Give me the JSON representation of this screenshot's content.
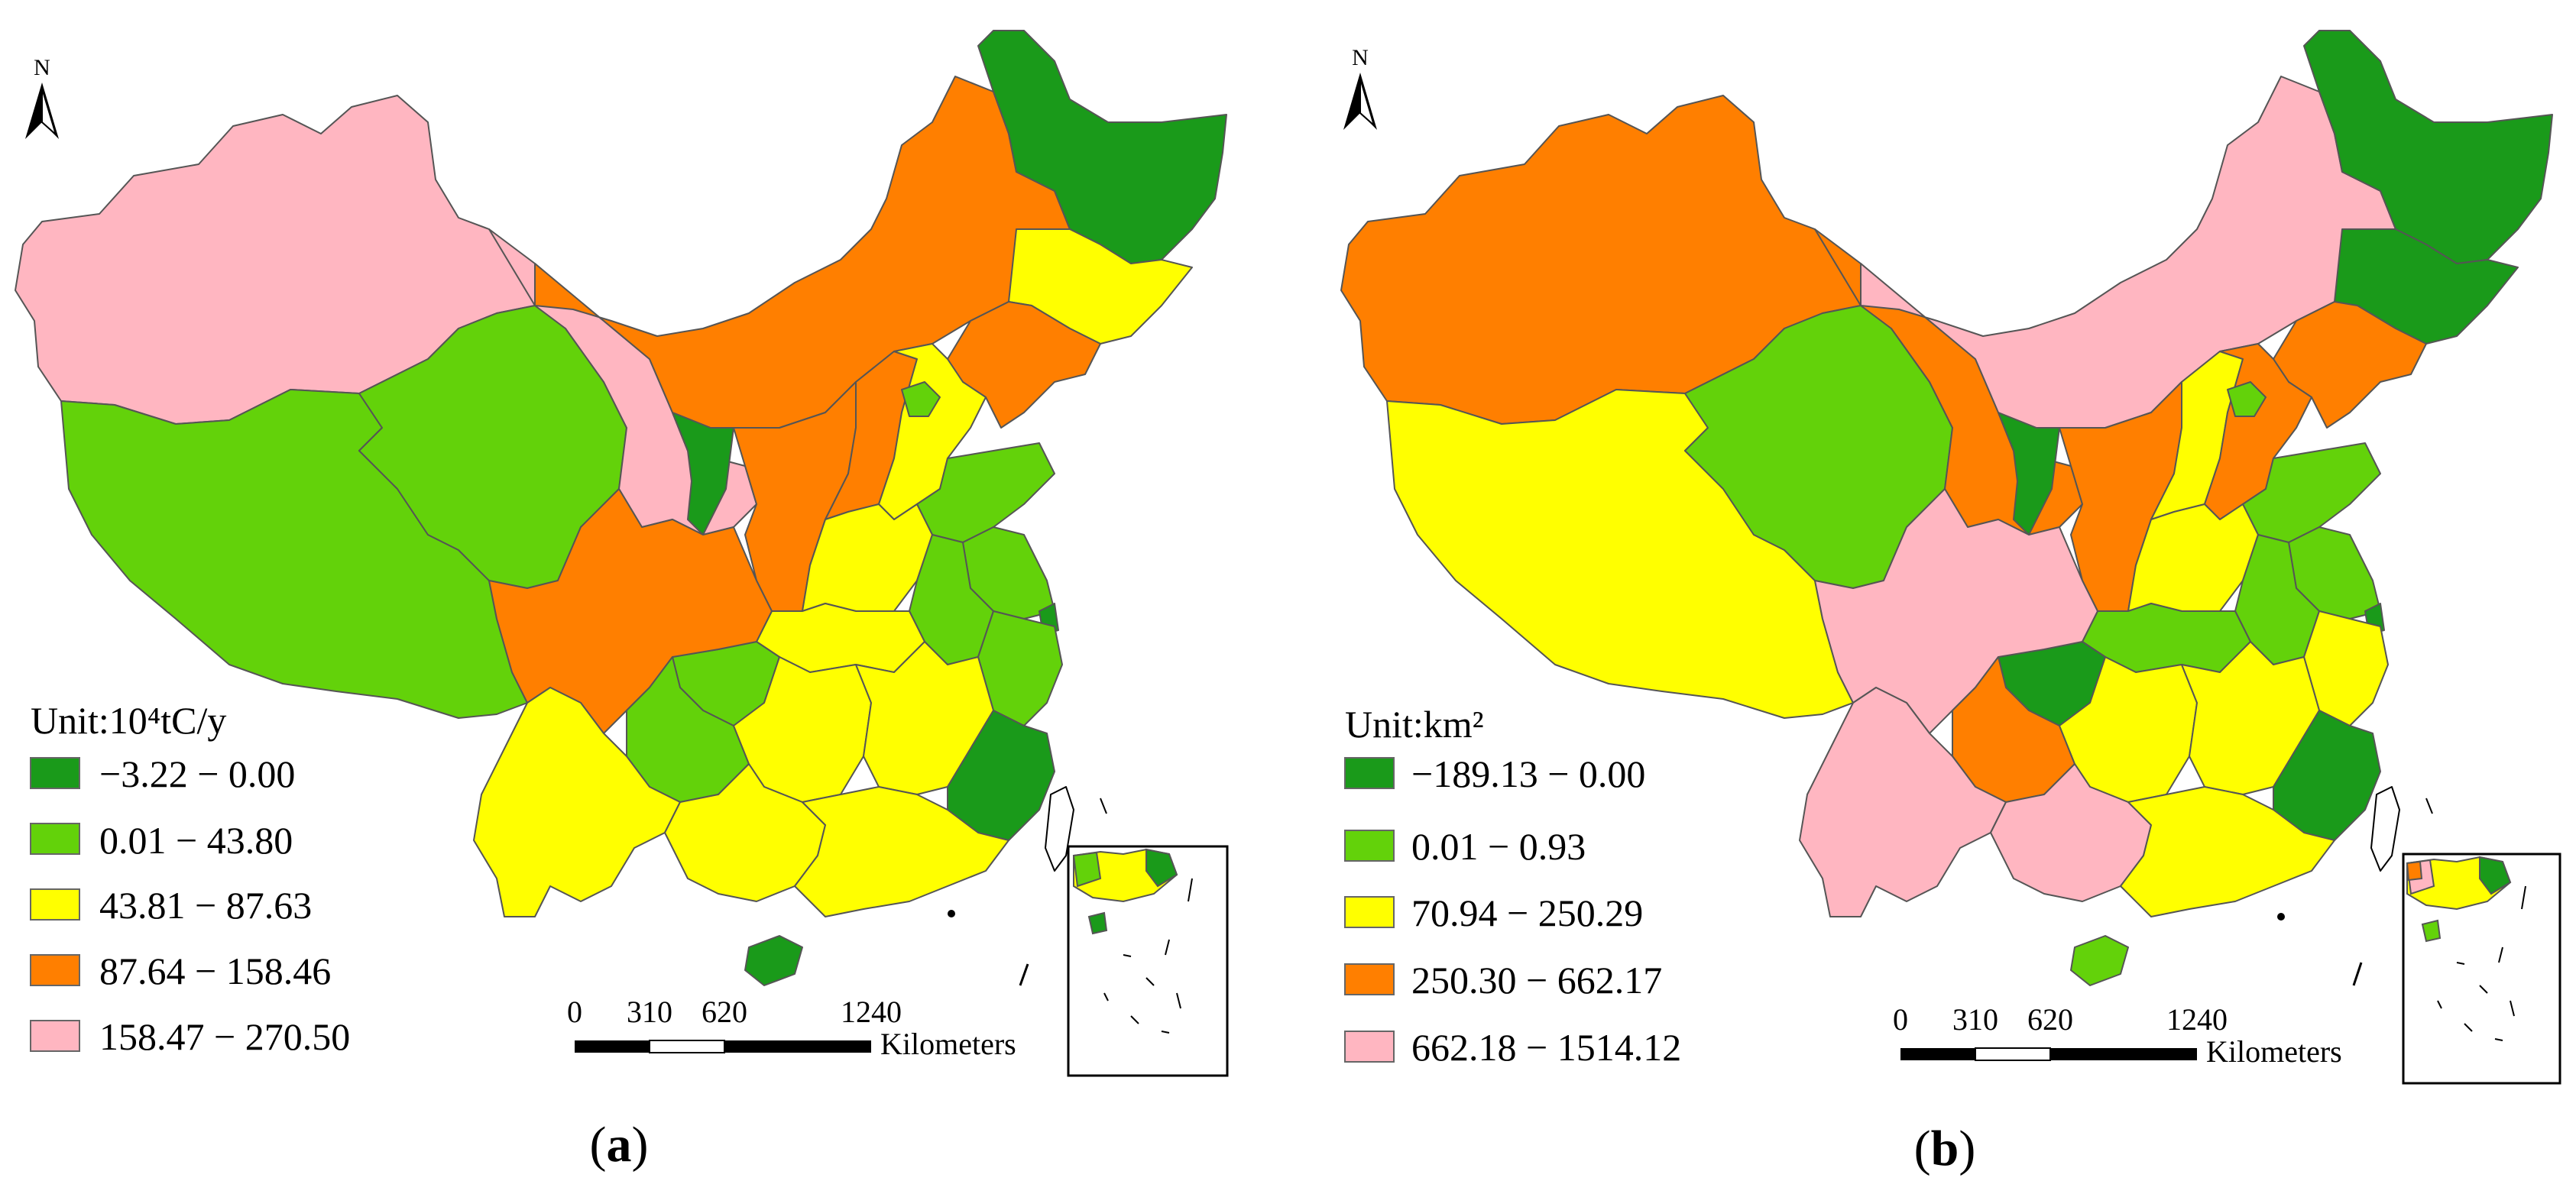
{
  "panels": [
    {
      "id": "a",
      "caption_letter": "a",
      "north_label": "N",
      "unit_text": "Unit:10⁴tC/y",
      "legend": [
        {
          "label": "−3.22 − 0.00",
          "color": "#1a9a1a"
        },
        {
          "label": "0.01 − 43.80",
          "color": "#63d20a"
        },
        {
          "label": "43.81 − 87.63",
          "color": "#ffff00"
        },
        {
          "label": "87.64 − 158.46",
          "color": "#ff7f00"
        },
        {
          "label": "158.47 − 270.50",
          "color": "#ffb6c1"
        }
      ],
      "scale": {
        "ticks": [
          "0",
          "310",
          "620",
          "1240"
        ],
        "unit": "Kilometers"
      }
    },
    {
      "id": "b",
      "caption_letter": "b",
      "north_label": "N",
      "unit_text": "Unit:km²",
      "legend": [
        {
          "label": "−189.13 − 0.00",
          "color": "#1a9a1a"
        },
        {
          "label": "0.01 − 0.93",
          "color": "#63d20a"
        },
        {
          "label": "70.94 − 250.29",
          "color": "#ffff00"
        },
        {
          "label": "250.30 − 662.17",
          "color": "#ff7f00"
        },
        {
          "label": "662.18 − 1514.12",
          "color": "#ffb6c1"
        }
      ],
      "scale": {
        "ticks": [
          "0",
          "310",
          "620",
          "1240"
        ],
        "unit": "Kilometers"
      }
    }
  ]
}
